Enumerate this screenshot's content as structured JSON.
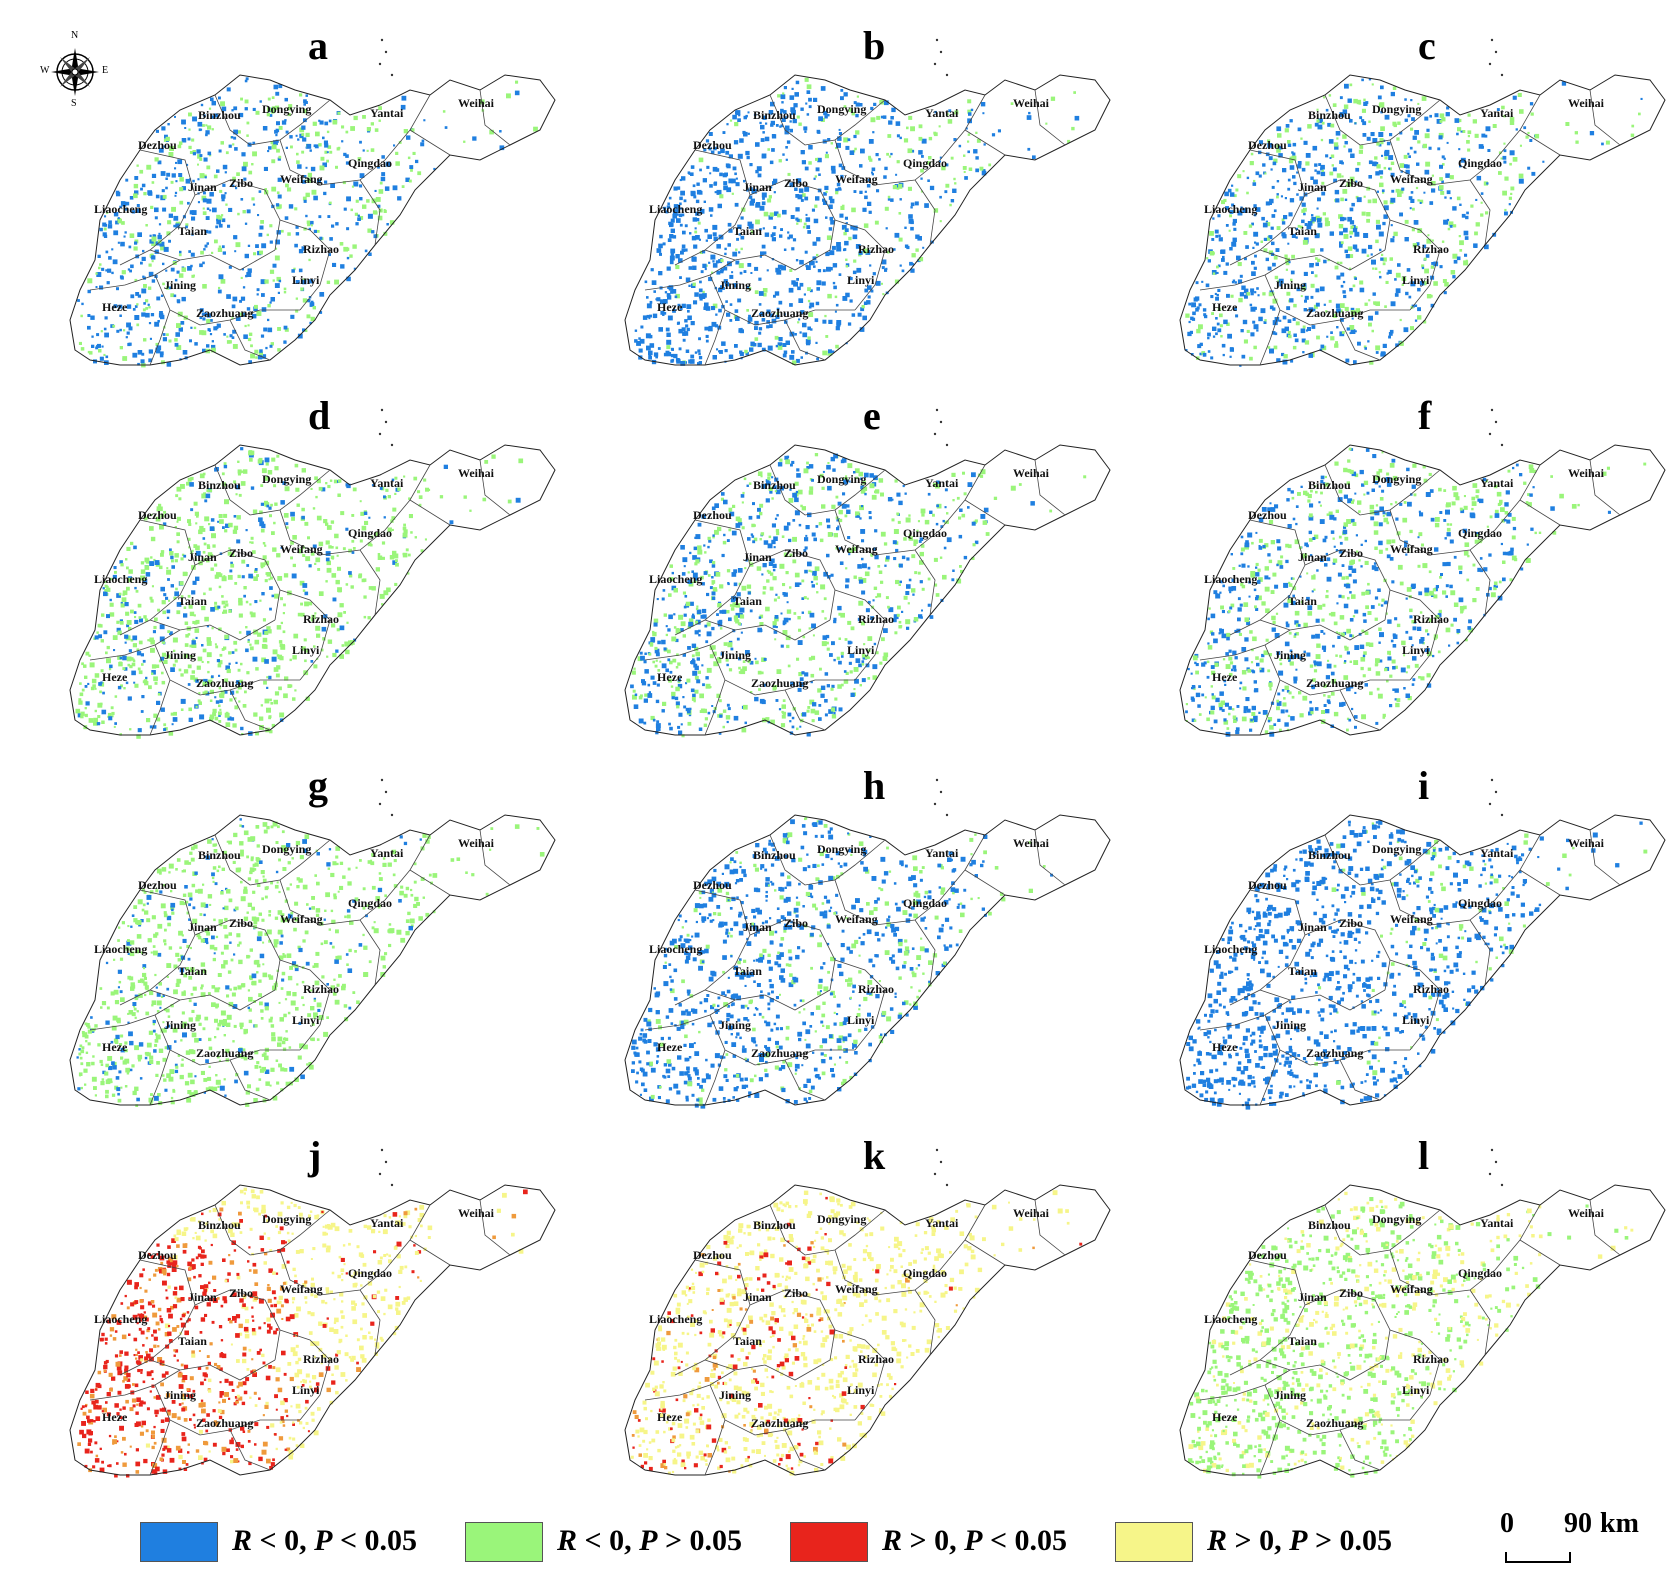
{
  "colors": {
    "blue": "#1f7fe0",
    "green": "#9af57a",
    "red": "#e8241c",
    "yellow": "#f6f589",
    "orange": "#ef9a3c"
  },
  "compass": {
    "n": "N",
    "s": "S",
    "e": "E",
    "w": "W",
    "icon": "compass-rose-icon"
  },
  "cities": [
    "Binzhou",
    "Dongying",
    "Yantai",
    "Weihai",
    "Dezhou",
    "Qingdao",
    "Jinan",
    "Zibo",
    "Weifang",
    "Liaocheng",
    "Taian",
    "Rizhao",
    "Linyi",
    "Jining",
    "Heze",
    "Zaozhuang"
  ],
  "panels": [
    {
      "letter": "a",
      "dominant": "blue",
      "scheme": "negative",
      "blue_share": 0.65
    },
    {
      "letter": "b",
      "dominant": "blue",
      "scheme": "negative",
      "blue_share": 0.8
    },
    {
      "letter": "c",
      "dominant": "blue",
      "scheme": "negative",
      "blue_share": 0.6
    },
    {
      "letter": "d",
      "dominant": "green",
      "scheme": "negative",
      "blue_share": 0.25
    },
    {
      "letter": "e",
      "dominant": "blue-green",
      "scheme": "negative",
      "blue_share": 0.5
    },
    {
      "letter": "f",
      "dominant": "blue-green",
      "scheme": "negative",
      "blue_share": 0.5
    },
    {
      "letter": "g",
      "dominant": "green",
      "scheme": "negative",
      "blue_share": 0.15
    },
    {
      "letter": "h",
      "dominant": "blue",
      "scheme": "negative",
      "blue_share": 0.7
    },
    {
      "letter": "i",
      "dominant": "blue",
      "scheme": "negative",
      "blue_share": 0.9
    },
    {
      "letter": "j",
      "dominant": "red-yellow",
      "scheme": "positive",
      "red_share": 0.45
    },
    {
      "letter": "k",
      "dominant": "yellow",
      "scheme": "positive",
      "red_share": 0.12
    },
    {
      "letter": "l",
      "dominant": "green-yellow",
      "scheme": "mixed",
      "red_share": 0.0
    }
  ],
  "legend": [
    {
      "r": "R",
      "r_op": " < 0, ",
      "p": "P",
      "p_op": " < 0.05",
      "color": "#1f7fe0"
    },
    {
      "r": "R",
      "r_op": " < 0, ",
      "p": "P",
      "p_op": " > 0.05",
      "color": "#9af57a"
    },
    {
      "r": "R",
      "r_op": " > 0, ",
      "p": "P",
      "p_op": " < 0.05",
      "color": "#e8241c"
    },
    {
      "r": "R",
      "r_op": " > 0, ",
      "p": "P",
      "p_op": " > 0.05",
      "color": "#f6f589"
    }
  ],
  "scale": {
    "zero": "0",
    "distance": "90",
    "unit": "km"
  }
}
